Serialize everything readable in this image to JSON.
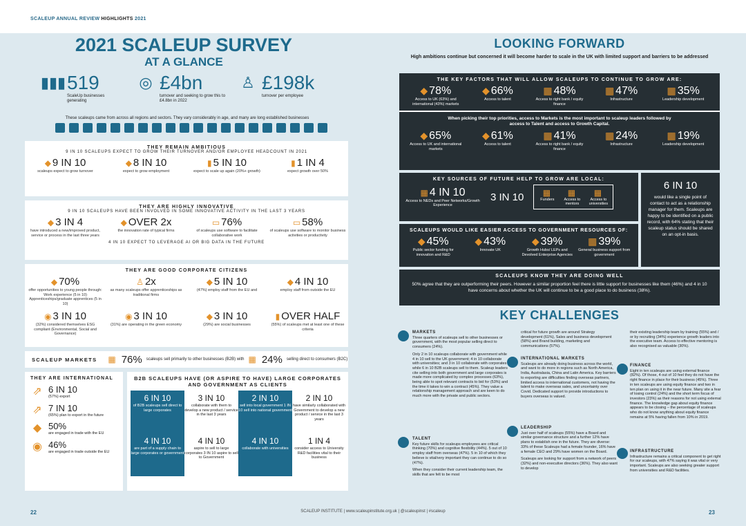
{
  "header": {
    "prefix": "SCALEUP ANNUAL REVIEW",
    "bold": "HIGHLIGHTS",
    "year": "2021"
  },
  "left": {
    "title": "2021 SCALEUP SURVEY",
    "subtitle": "AT A GLANCE",
    "stats": [
      {
        "value": "519",
        "label": "ScaleUp businesses generating"
      },
      {
        "value": "£4bn",
        "label": "turnover and seeking to grow this to £4.8bn in 2022"
      },
      {
        "value": "£198k",
        "label": "turnover per employee"
      }
    ],
    "sectors_note": "These scaleups came from across all regions and sectors. They vary considerably in age, and many are long established businesses",
    "ambitious": {
      "title": "THEY REMAIN AMBITIOUS",
      "sub": "9 IN 10 SCALEUPS EXPECT TO GROW THEIR TURNOVER AND/OR EMPLOYEE HEADCOUNT IN 2021",
      "items": [
        {
          "v": "9 IN 10",
          "d": "scaleups expect to grow turnover"
        },
        {
          "v": "8 IN 10",
          "d": "expect to grow employment"
        },
        {
          "v": "5 IN 10",
          "d": "expect to scale up again (20%+ growth)"
        },
        {
          "v": "1 IN 4",
          "d": "expect growth over 50%"
        }
      ]
    },
    "innovative": {
      "title": "THEY ARE HIGHLY INNOVATIVE",
      "sub": "9 IN 10 SCALEUPS HAVE BEEN INVOLVED IN SOME INNOVATIVE ACTIVITY IN THE LAST 3 YEARS",
      "items": [
        {
          "v": "3 IN 4",
          "d": "have introduced a new/improved product, service or process in the last three years"
        },
        {
          "v": "OVER 2x",
          "d": "the innovation rate of typical firms"
        },
        {
          "v": "76%",
          "d": "of scaleups use software to facilitate collaborative work"
        },
        {
          "v": "58%",
          "d": "of scaleups use software to monitor business activities or productivity"
        }
      ],
      "foot": "4 IN 10 EXPECT TO LEVERAGE AI OR BIG DATA IN THE FUTURE"
    },
    "citizens": {
      "title": "THEY ARE GOOD CORPORATE CITIZENS",
      "row1": [
        {
          "v": "70%",
          "d": "offer opportunities to young people through: Work experience (5 in 10) Apprenticeships/graduate apprentices (5 in 10)"
        },
        {
          "v": "2x",
          "d": "as many scaleups offer apprenticeships as traditional firms"
        },
        {
          "v": "5 IN 10",
          "d": "(47%) employ staff from the EU and"
        },
        {
          "v": "4 IN 10",
          "d": "employ staff from outside the EU"
        }
      ],
      "row2": [
        {
          "v": "3 IN 10",
          "d": "(32%) considered themselves ESG compliant (Environmental, Social and Governance)"
        },
        {
          "v": "3 IN 10",
          "d": "(31%) are operating in the green economy"
        },
        {
          "v": "3 IN 10",
          "d": "(29%) are social businesses"
        },
        {
          "v": "OVER HALF",
          "d": "(55%) of scaleups met at least one of these criteria"
        }
      ]
    },
    "markets": {
      "label": "SCALEUP MARKETS",
      "b2b_pct": "76%",
      "b2b_text": "scaleups sell primarily to other businesses (B2B) with",
      "b2c_pct": "24%",
      "b2c_text": "selling direct to consumers (B2C)"
    },
    "international": {
      "title": "THEY ARE INTERNATIONAL",
      "items": [
        {
          "v": "6 IN 10",
          "d": "(57%) export"
        },
        {
          "v": "7 IN 10",
          "d": "(65%) plan to export in the future"
        },
        {
          "v": "50%",
          "d": "are engaged in trade with the EU"
        },
        {
          "v": "46%",
          "d": "are engaged in trade outside the EU"
        }
      ]
    },
    "b2b": {
      "title": "B2B SCALEUPS HAVE (OR ASPIRE TO HAVE) LARGE CORPORATES AND GOVERNMENT AS CLIENTS",
      "cells": [
        {
          "v": "6 IN 10",
          "d": "of B2B scaleups sell direct to large corporates",
          "blue": true
        },
        {
          "v": "3 IN 10",
          "d": "collaborate with them to develop a new product / service in the last 3 years",
          "blue": false
        },
        {
          "v": "2 IN 10",
          "d": "sell into local government 1 IN 10 sell into national government",
          "blue": true
        },
        {
          "v": "2 IN 10",
          "d": "have similarly collaborated with Government to develop a new product / service in the last 3 years",
          "blue": false
        },
        {
          "v": "4 IN 10",
          "d": "are part of a supply chain to large corporates or government",
          "blue": true
        },
        {
          "v": "4 IN 10",
          "d": "aspire to sell to large corporates 3 IN 10 aspire to sell to Government",
          "blue": false
        },
        {
          "v": "4 IN 10",
          "d": "collaborate with universities",
          "blue": true
        },
        {
          "v": "1 IN 4",
          "d": "consider access to University R&D facilities vital to their business",
          "blue": false
        }
      ]
    }
  },
  "right": {
    "title": "LOOKING FORWARD",
    "sub": "High ambitions continue but concerned it will become harder to scale in the UK with limited support and barriers to be addressed",
    "key_factors": {
      "title": "THE KEY FACTORS THAT WILL ALLOW SCALEUPS TO CONTINUE TO GROW ARE:",
      "items": [
        {
          "v": "78%",
          "d": "Access to UK (63%) and international (43%) markets"
        },
        {
          "v": "66%",
          "d": "Access to talent"
        },
        {
          "v": "48%",
          "d": "Access to right bank / equity finance"
        },
        {
          "v": "47%",
          "d": "Infrastructure"
        },
        {
          "v": "35%",
          "d": "Leadership development"
        }
      ],
      "priority_note": "When picking their top priorities, access to Markets is the most important to scaleup leaders followed by access to Talent and access to Growth Capital.",
      "priorities": [
        {
          "v": "65%",
          "d": "Access to UK and international markets"
        },
        {
          "v": "61%",
          "d": "Access to talent"
        },
        {
          "v": "41%",
          "d": "Access to right bank / equity finance"
        },
        {
          "v": "24%",
          "d": "Infrastructure"
        },
        {
          "v": "19%",
          "d": "Leadership development"
        }
      ]
    },
    "future_help": {
      "title": "KEY SOURCES OF FUTURE HELP TO GROW ARE LOCAL:",
      "a_v": "4 IN 10",
      "a_d": "Access to NEDs and Peer Networks/Growth Experience",
      "b_v": "3 IN 10",
      "b_items": [
        "Funders",
        "Access to mentors",
        "Access to universities"
      ]
    },
    "relationship": {
      "v": "6 IN 10",
      "d": "would like a single point of contact to act as a relationship manager for them. Scaleups are happy to be identified on a public record, with 64% stating that their scaleup status should be shared on an opt-in basis."
    },
    "gov": {
      "title": "SCALEUPS WOULD LIKE EASIER ACCESS TO GOVERNMENT RESOURCES OF:",
      "items": [
        {
          "v": "45%",
          "d": "Public sector funding for innovation and R&D"
        },
        {
          "v": "43%",
          "d": "Innovate UK"
        },
        {
          "v": "39%",
          "d": "Growth Hubs/ LEPs and Devolved Enterprise Agencies"
        },
        {
          "v": "39%",
          "d": "General business support from government"
        }
      ]
    },
    "doing_well": {
      "title": "SCALEUPS KNOW THEY ARE DOING WELL",
      "text": "50% agree that they are outperforming their peers. However a similar proportion feel there is little support for businesses like them (46%) and 4 in 10 have concerns about whether the UK will continue to be a good place to do business (38%)."
    },
    "challenges_title": "KEY CHALLENGES",
    "challenges": {
      "markets_h": "MARKETS",
      "markets_p1": "Three quarters of scaleups sell to other businesses or government, with the most popular selling direct to consumers (24%).",
      "markets_p2": "Only 2 in 10 scaleups collaborate with government while 4 in 10 sell to the UK government; 4 in 10 collaborate with universities; and 3 in 10 collaborate with corporates while 6 in 10 B2B scaleups sell to them. Scaleup leaders cite selling into both government and large corporates is made more complicated by complex processes (63%), being able to spot relevant contracts to bid for (53%) and the time it takes to win a contract (45%). They value a relationship management approach and are keen to do much more with the private and public sectors.",
      "talent_h": "TALENT",
      "talent_p1": "Key future skills for scaleups employees are critical thinking (70%) and cognitive flexibility (44%). 5 out of 10 employ staff from overseas (47%). 5 in 10 of which they believe is vital/very important they can continue to do so (47%).",
      "talent_p2": "When they consider their current leadership team, the skills that are felt to be most",
      "col2_p1": "critical for future growth are around Strategy development (61%), Sales and business development (58%) and Brand building, marketing and communications (57%).",
      "intl_h": "INTERNATIONAL MARKETS",
      "intl_p": "Scaleups are already doing business across the world, and want to do more in regions such as North America, India, Australasia, China and Latin America. Key barriers to exporting are difficulties finding overseas partners, limited access to international customers, not having the talent to make overseas sales, and uncertainty over Covid. Dedicated support to provide introductions to buyers overseas is valued.",
      "lead_h": "LEADERSHIP",
      "lead_p1": "Just over half of scaleups (55%) have a Board and similar governance structure and a further 12% have plans to establish one in the future. They are diverse: 33% of these Scaleups had a female founder, 16% have a female CEO and 29% have women on the Board.",
      "lead_p2": "Scaleups are looking for support from a network of peers (32%) and non-executive directors (36%). They also want to develop",
      "col3_p1": "their existing leadership team by training (55%) and / or by recruiting (34%) experience growth leaders into the executive team. Access to effective mentoring is also recognised as valuable (30%).",
      "fin_h": "FINANCE",
      "fin_p": "Eight in ten scaleups are using external finance (82%). Of those, 4 out of 10 feel they do not have the right finance in place for their business (45%). Three in ten scaleups are using equity finance and two in ten plan on using it in the near future. Many site a fear of losing control (24%) and the short term focus of investors (23%) as their reasons for not using external finance. The knowledge gap about equity finance appears to be closing – the percentage of scaleups who do not know anything about equity finance remains at 5% having fallen from 10% in 2019.",
      "infra_h": "INFRASTRUCTURE",
      "infra_p": "Infrastructure remains a critical component to get right for our scaleups, with 47% saying it was vital or very important. Scaleups are also seeking greater support from universities and R&D facilities."
    }
  },
  "footer": {
    "left_page": "22",
    "right_page": "23",
    "center": "SCALEUP INSTITUTE | www.scaleupinstitute.org.uk | @scaleupinst | #scaleup"
  },
  "colors": {
    "accent": "#1e6a8c",
    "orange": "#e3922b",
    "dark": "#262f34",
    "band": "#dde9ef"
  }
}
